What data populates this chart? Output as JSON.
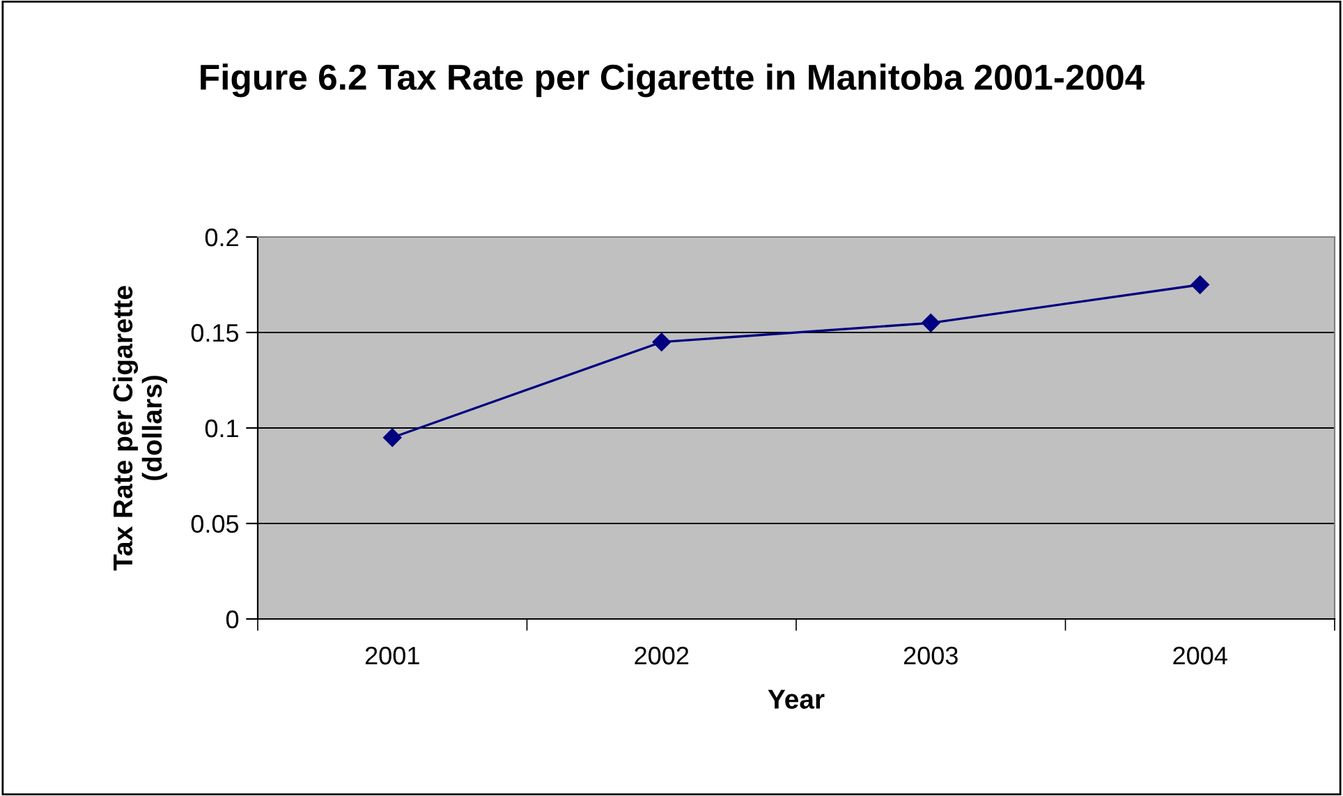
{
  "chart_data": {
    "type": "line",
    "title": "Figure 6.2 Tax Rate per Cigarette in Manitoba 2001-2004",
    "xlabel": "Year",
    "ylabel": "Tax Rate per Cigarette\n(dollars)",
    "categories": [
      "2001",
      "2002",
      "2003",
      "2004"
    ],
    "series": [
      {
        "color": "#000080",
        "values": [
          0.095,
          0.145,
          0.155,
          0.175
        ]
      }
    ],
    "ylim": [
      0,
      0.2
    ],
    "yticks": [
      0,
      0.05,
      0.1,
      0.15,
      0.2
    ],
    "grid": "y",
    "marker": "diamond",
    "line_style": "solid",
    "legend": false
  }
}
